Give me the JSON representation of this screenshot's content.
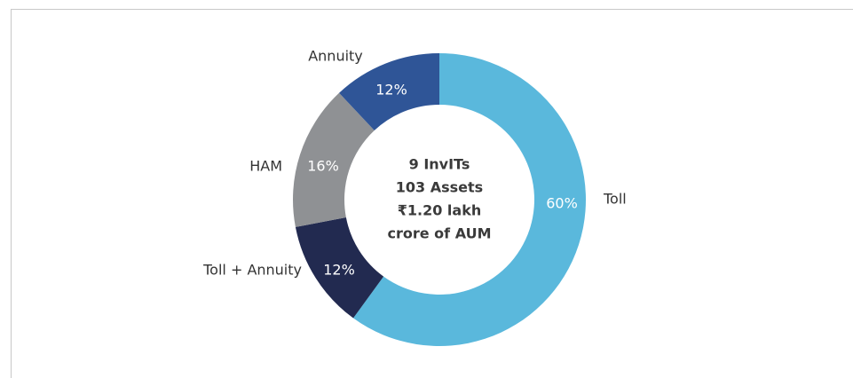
{
  "chart_data": {
    "type": "donut",
    "categories": [
      "Toll",
      "Toll + Annuity",
      "HAM",
      "Annuity"
    ],
    "values": [
      60,
      12,
      16,
      12
    ],
    "value_labels": [
      "60%",
      "12%",
      "16%",
      "12%"
    ],
    "colors": [
      "#5ab8dc",
      "#222a50",
      "#8f9194",
      "#2f5597"
    ],
    "center_text": [
      "9 InvITs",
      "103 Assets",
      "₹1.20 lakh",
      "crore of AUM"
    ]
  }
}
